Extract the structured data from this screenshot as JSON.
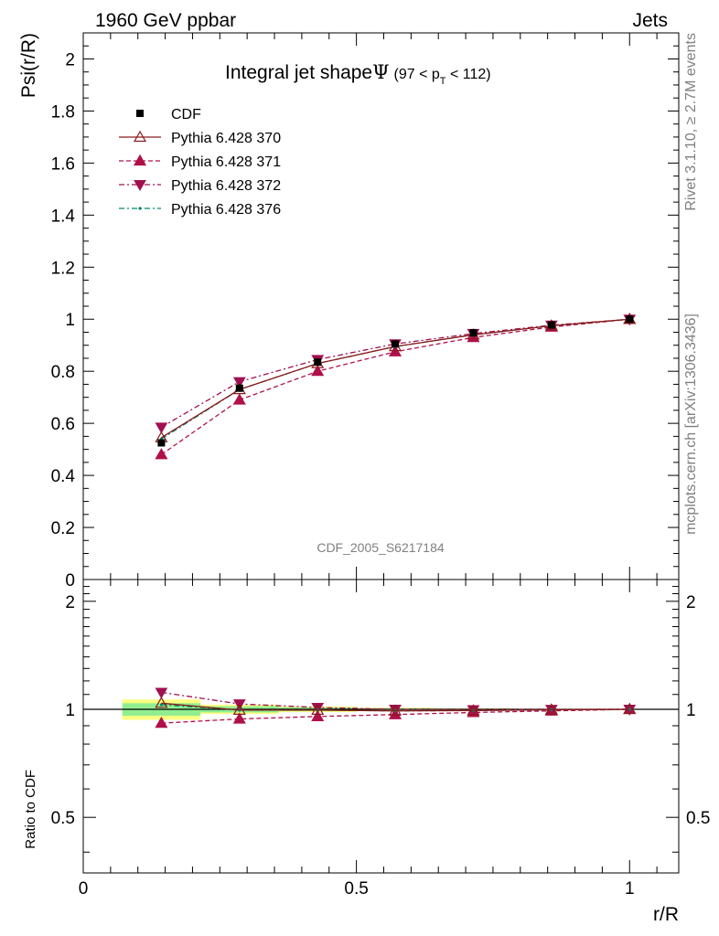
{
  "header": {
    "left": "1960 GeV ppbar",
    "right": "Jets"
  },
  "side": {
    "rivet": "Rivet 3.1.10, ≥ 2.7M events",
    "mcplots": "mcplots.cern.ch [arXiv:1306.3436]"
  },
  "chart_data": [
    {
      "type": "line",
      "title_main": "Integral jet shape",
      "title_symbol": "Ψ",
      "title_range_pre": "(97 < p",
      "title_range_sub": "T",
      "title_range_post": " < 112)",
      "ylabel": "Psi(r/R)",
      "xlim": [
        0,
        1.09
      ],
      "ylim": [
        0,
        2.1
      ],
      "yticks": [
        0,
        0.2,
        0.4,
        0.6,
        0.8,
        1,
        1.2,
        1.4,
        1.6,
        1.8,
        2
      ],
      "ytick_labels": [
        "0",
        "0.2",
        "0.4",
        "0.6",
        "0.8",
        "1",
        "1.2",
        "1.4",
        "1.6",
        "1.8",
        "2"
      ],
      "analysis_label": "CDF_2005_S6217184",
      "x": [
        0.143,
        0.286,
        0.429,
        0.571,
        0.714,
        0.857,
        1.0
      ],
      "series": [
        {
          "name": "CDF",
          "color": "#000000",
          "marker": "square",
          "line": "none",
          "values": [
            0.525,
            0.735,
            0.835,
            0.905,
            0.948,
            0.978,
            1.0
          ]
        },
        {
          "name": "Pythia 6.428 370",
          "color": "#8b1a1a",
          "marker": "triangle-up-open",
          "line": "solid",
          "values": [
            0.545,
            0.73,
            0.83,
            0.895,
            0.94,
            0.975,
            1.0
          ]
        },
        {
          "name": "Pythia 6.428 371",
          "color": "#b0104a",
          "marker": "triangle-up",
          "line": "dashed",
          "values": [
            0.48,
            0.69,
            0.8,
            0.875,
            0.93,
            0.97,
            1.0
          ]
        },
        {
          "name": "Pythia 6.428 372",
          "color": "#a01050",
          "marker": "triangle-down",
          "line": "dashdot",
          "values": [
            0.585,
            0.76,
            0.845,
            0.905,
            0.945,
            0.977,
            1.0
          ]
        },
        {
          "name": "Pythia 6.428 376",
          "color": "#00896b",
          "marker": "dot",
          "line": "dashdot",
          "values": [
            0.54,
            0.73,
            0.83,
            0.895,
            0.94,
            0.975,
            1.0
          ]
        }
      ]
    },
    {
      "type": "line",
      "ylabel": "Ratio to CDF",
      "xlabel": "r/R",
      "xlim": [
        0,
        1.09
      ],
      "ylim": [
        0.35,
        2.3
      ],
      "yscale": "log",
      "yticks": [
        0.5,
        1,
        2
      ],
      "ytick_labels": [
        "0.5",
        "1",
        "2"
      ],
      "xticks": [
        0,
        0.5,
        1
      ],
      "xtick_labels": [
        "0",
        "0.5",
        "1"
      ],
      "x": [
        0.143,
        0.286,
        0.429,
        0.571,
        0.714,
        0.857,
        1.0
      ],
      "band_inner": {
        "color": "#90ee90",
        "values": [
          0.04,
          0.02,
          0.012,
          0.006,
          0.004,
          0.002,
          0.0
        ]
      },
      "band_outer": {
        "color": "#ffff80",
        "values": [
          0.065,
          0.03,
          0.018,
          0.01,
          0.006,
          0.003,
          0.0
        ]
      },
      "series": [
        {
          "name": "Pythia 6.428 370",
          "color": "#8b1a1a",
          "marker": "triangle-up-open",
          "line": "solid",
          "values": [
            1.04,
            0.995,
            0.995,
            0.99,
            0.992,
            0.997,
            1.0
          ]
        },
        {
          "name": "Pythia 6.428 371",
          "color": "#b0104a",
          "marker": "triangle-up",
          "line": "dashed",
          "values": [
            0.915,
            0.94,
            0.955,
            0.967,
            0.98,
            0.99,
            1.0
          ]
        },
        {
          "name": "Pythia 6.428 372",
          "color": "#a01050",
          "marker": "triangle-down",
          "line": "dashdot",
          "values": [
            1.115,
            1.035,
            1.012,
            1.0,
            0.997,
            0.999,
            1.0
          ]
        },
        {
          "name": "Pythia 6.428 376",
          "color": "#00896b",
          "marker": "dot",
          "line": "dashdot",
          "values": [
            1.03,
            0.995,
            0.995,
            0.99,
            0.992,
            0.997,
            1.0
          ]
        }
      ]
    }
  ]
}
